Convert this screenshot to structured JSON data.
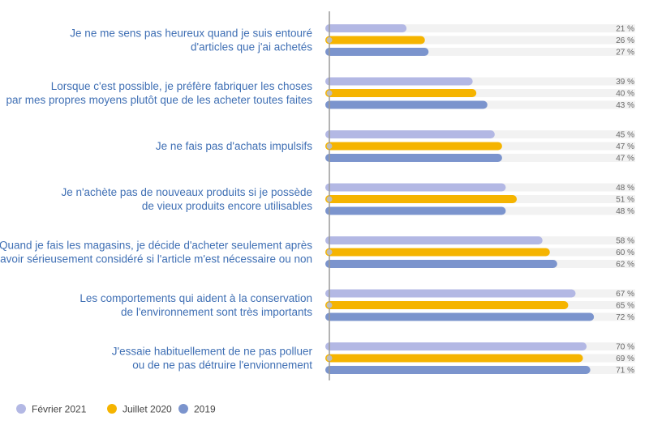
{
  "colors": {
    "fevrier_2021": "#b3b8e4",
    "juillet_2020": "#f5b400",
    "y2019": "#7b94cd",
    "track": "#f2f2f2",
    "axis": "#9a9a9a",
    "label": "#3f6fb4"
  },
  "chart_data": {
    "type": "bar",
    "orientation": "horizontal",
    "xlim": [
      0,
      100
    ],
    "grid": false,
    "legend_position": "bottom-left",
    "value_suffix": " %",
    "categories": [
      [
        "Je ne me sens pas heureux quand je suis entouré",
        "d'articles que j'ai achetés"
      ],
      [
        "Lorsque c'est possible, je préfère fabriquer les choses",
        "par mes propres moyens plutôt que de les acheter toutes faites"
      ],
      [
        "Je ne fais pas d'achats impulsifs"
      ],
      [
        "Je n'achète pas de nouveaux produits si je possède",
        "de vieux produits encore utilisables"
      ],
      [
        "Quand je fais les magasins, je décide d'acheter seulement après",
        "avoir sérieusement considéré si l'article m'est nécessaire ou non"
      ],
      [
        "Les comportements qui aident à la conservation",
        "de l'environnement sont très importants"
      ],
      [
        "J'essaie habituellement de ne pas polluer",
        "ou de ne pas détruire l'envionnement"
      ]
    ],
    "series": [
      {
        "name": "Février 2021",
        "color": "#b3b8e4",
        "values": [
          21,
          39,
          45,
          48,
          58,
          67,
          70
        ]
      },
      {
        "name": "Juillet 2020",
        "color": "#f5b400",
        "values": [
          26,
          40,
          47,
          51,
          60,
          65,
          69
        ]
      },
      {
        "name": "2019",
        "color": "#7b94cd",
        "values": [
          27,
          43,
          47,
          48,
          62,
          72,
          71
        ]
      }
    ]
  }
}
